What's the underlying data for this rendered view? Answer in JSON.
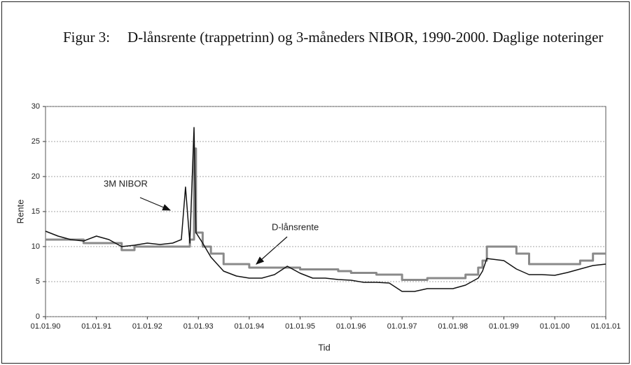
{
  "chart_data": {
    "type": "line",
    "figure_label": "Figur 3:",
    "title": "D-lånsrente (trappetrinn) og 3-måneders NIBOR, 1990-2000. Daglige noteringer",
    "x_label": "Tid",
    "y_label": "Rente",
    "annotations": [
      {
        "text": "3M NIBOR"
      },
      {
        "text": "D-lånsrente"
      }
    ],
    "x": [
      "01.01.90",
      "01.04.90",
      "01.07.90",
      "01.10.90",
      "01.01.91",
      "01.04.91",
      "01.07.91",
      "01.10.91",
      "01.01.92",
      "01.04.92",
      "01.07.92",
      "01.09.92",
      "01.10.92",
      "01.11.92",
      "01.12.92",
      "15.12.92",
      "01.02.93",
      "01.04.93",
      "01.07.93",
      "01.10.93",
      "01.01.94",
      "01.04.94",
      "01.07.94",
      "01.10.94",
      "01.01.95",
      "01.04.95",
      "01.07.95",
      "01.10.95",
      "01.01.96",
      "01.04.96",
      "01.07.96",
      "01.10.96",
      "01.01.97",
      "01.04.97",
      "01.07.97",
      "01.10.97",
      "01.01.98",
      "01.04.98",
      "01.07.98",
      "01.08.98",
      "01.09.98",
      "01.01.99",
      "01.04.99",
      "01.07.99",
      "01.10.99",
      "01.01.00",
      "01.04.00",
      "01.07.00",
      "01.10.00",
      "01.01.01"
    ],
    "series": [
      {
        "name": "3M NIBOR",
        "color": "#111111",
        "step": false,
        "values": [
          12.2,
          11.5,
          11.0,
          10.8,
          11.5,
          11.0,
          10.0,
          10.2,
          10.5,
          10.3,
          10.5,
          11.0,
          18.5,
          10.5,
          27.0,
          12,
          10.5,
          8.5,
          6.5,
          5.8,
          5.5,
          5.5,
          6.0,
          7.2,
          6.2,
          5.5,
          5.5,
          5.3,
          5.2,
          4.9,
          4.9,
          4.8,
          3.6,
          3.6,
          4.0,
          4.0,
          4.0,
          4.5,
          5.5,
          6.5,
          8.3,
          8.0,
          6.8,
          6.0,
          6.0,
          5.9,
          6.3,
          6.8,
          7.3,
          7.5
        ]
      },
      {
        "name": "D-lånsrente",
        "color": "#8a8a8a",
        "step": true,
        "values": [
          11,
          11,
          11,
          10.5,
          10.5,
          10.5,
          9.5,
          10,
          10,
          10,
          10,
          10,
          10,
          11,
          24,
          12,
          10,
          9,
          7.5,
          7.5,
          7,
          7,
          7,
          7,
          6.75,
          6.75,
          6.75,
          6.5,
          6.25,
          6.25,
          6.0,
          6.0,
          5.25,
          5.25,
          5.5,
          5.5,
          5.5,
          6,
          7,
          8,
          10,
          10,
          9,
          7.5,
          7.5,
          7.5,
          7.5,
          8,
          9,
          9
        ]
      }
    ],
    "xlim": [
      "01.01.90",
      "01.01.01"
    ],
    "xticks": [
      "01.01.90",
      "01.01.91",
      "01.01.92",
      "01.01.93",
      "01.01.94",
      "01.01.95",
      "01.01.96",
      "01.01.97",
      "01.01.98",
      "01.01.99",
      "01.01.00",
      "01.01.01"
    ],
    "ylim": [
      0,
      30
    ],
    "yticks": [
      0,
      5,
      10,
      15,
      20,
      25,
      30
    ],
    "grid": true
  }
}
